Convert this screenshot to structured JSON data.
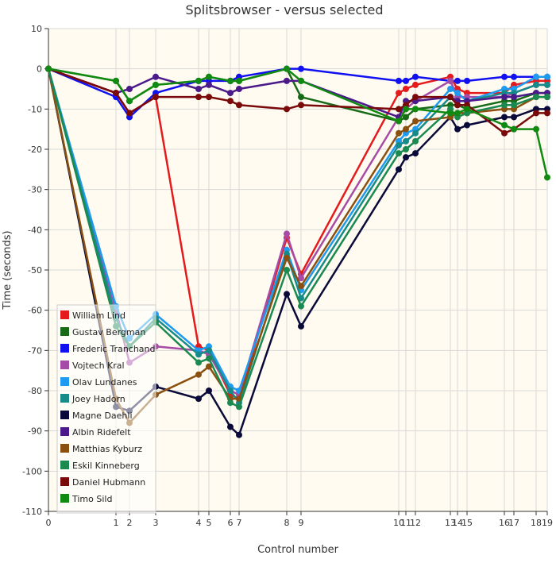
{
  "chart_data": {
    "type": "line",
    "title": "Splitsbrowser - versus selected",
    "xlabel": "Control number",
    "ylabel": "Time (seconds)",
    "ylim": [
      -110,
      10
    ],
    "y_ticks": [
      10,
      0,
      -10,
      -20,
      -30,
      -40,
      -50,
      -60,
      -70,
      -80,
      -90,
      -100,
      -110
    ],
    "x": [
      0,
      1,
      2,
      3,
      4,
      5,
      6,
      7,
      8,
      9,
      10,
      11,
      12,
      13,
      14,
      15,
      16,
      17,
      18,
      19
    ],
    "x_positions": [
      0,
      85,
      102,
      135,
      189,
      202,
      229,
      240,
      300,
      318,
      441,
      450,
      462,
      506,
      515,
      527,
      574,
      586,
      614,
      628
    ],
    "x_tick_labels": [
      "0",
      "1",
      "2",
      "3",
      "4",
      "5",
      "6",
      "7",
      "8",
      "9",
      "10",
      "11",
      "12",
      "13",
      "14",
      "15",
      "16",
      "17",
      "18",
      "19"
    ],
    "grid": true,
    "legend_position": "bottom-left",
    "series": [
      {
        "name": "William Lind",
        "color": "#e41a1c",
        "values": [
          0,
          -6,
          -11,
          -7,
          -69,
          -70,
          -81,
          -82,
          -42,
          -51,
          -6,
          -5,
          -4,
          -2,
          -5,
          -6,
          -6,
          -4,
          -3,
          -3
        ]
      },
      {
        "name": "Gustav Bergman",
        "color": "#176b17",
        "values": [
          0,
          -3,
          -8,
          -4,
          -3,
          -2,
          -3,
          -3,
          0,
          -7,
          -13,
          -12,
          -10,
          -9,
          -9,
          -10,
          -8,
          -8,
          -6,
          -6
        ]
      },
      {
        "name": "Frederic Tranchand",
        "color": "#1010f0",
        "values": [
          0,
          -7,
          -12,
          -6,
          -3,
          -3,
          -3,
          -2,
          0,
          0,
          -3,
          -3,
          -2,
          -3,
          -3,
          -3,
          -2,
          -2,
          -2,
          -2
        ]
      },
      {
        "name": "Vojtech Kral",
        "color": "#a64ca6",
        "values": [
          0,
          -60,
          -73,
          -69,
          -70,
          -71,
          -80,
          -81,
          -41,
          -52,
          -12,
          -10,
          -8,
          -3,
          -7,
          -7,
          -7,
          -6,
          -4,
          -4
        ]
      },
      {
        "name": "Olav Lundanes",
        "color": "#1e9bf0",
        "values": [
          0,
          -59,
          -67,
          -61,
          -70,
          -69,
          -79,
          -80,
          -45,
          -55,
          -18,
          -16,
          -15,
          -5,
          -6,
          -8,
          -5,
          -5,
          -2,
          -2
        ]
      },
      {
        "name": "Joey Hadorn",
        "color": "#178a8a",
        "values": [
          0,
          -62,
          -69,
          -62,
          -71,
          -70,
          -80,
          -83,
          -46,
          -57,
          -19,
          -18,
          -16,
          -7,
          -8,
          -8,
          -6,
          -6,
          -4,
          -4
        ]
      },
      {
        "name": "Magne Daehli",
        "color": "#0a0a3a",
        "values": [
          0,
          -84,
          -85,
          -79,
          -82,
          -80,
          -89,
          -91,
          -56,
          -64,
          -25,
          -22,
          -21,
          -12,
          -15,
          -14,
          -12,
          -12,
          -10,
          -10
        ]
      },
      {
        "name": "Albin Ridefelt",
        "color": "#4b1a8a",
        "values": [
          0,
          -6,
          -5,
          -2,
          -5,
          -4,
          -6,
          -5,
          -3,
          -3,
          -12,
          -8,
          -8,
          -7,
          -8,
          -8,
          -7,
          -7,
          -6,
          -6
        ]
      },
      {
        "name": "Matthias Kyburz",
        "color": "#8a5010",
        "values": [
          0,
          -82,
          -88,
          -81,
          -76,
          -74,
          -82,
          -82,
          -47,
          -54,
          -16,
          -15,
          -13,
          -12,
          -11,
          -11,
          -10,
          -10,
          -7,
          -7
        ]
      },
      {
        "name": "Eskil Kinneberg",
        "color": "#1a8a50",
        "values": [
          0,
          -64,
          -69,
          -63,
          -73,
          -72,
          -83,
          -84,
          -50,
          -59,
          -21,
          -20,
          -18,
          -10,
          -12,
          -11,
          -9,
          -9,
          -7,
          -7
        ]
      },
      {
        "name": "Daniel Hubmann",
        "color": "#7a0a0a",
        "values": [
          0,
          -6,
          -11,
          -7,
          -7,
          -7,
          -8,
          -9,
          -10,
          -9,
          -10,
          -9,
          -7,
          -7,
          -9,
          -9,
          -16,
          -15,
          -11,
          -11
        ]
      },
      {
        "name": "Timo Sild",
        "color": "#118a11",
        "values": [
          0,
          -3,
          -8,
          -4,
          -3,
          -2,
          -3,
          -3,
          0,
          -3,
          -13,
          -10,
          -10,
          -11,
          -11,
          -10,
          -14,
          -15,
          -15,
          -27
        ]
      }
    ]
  }
}
